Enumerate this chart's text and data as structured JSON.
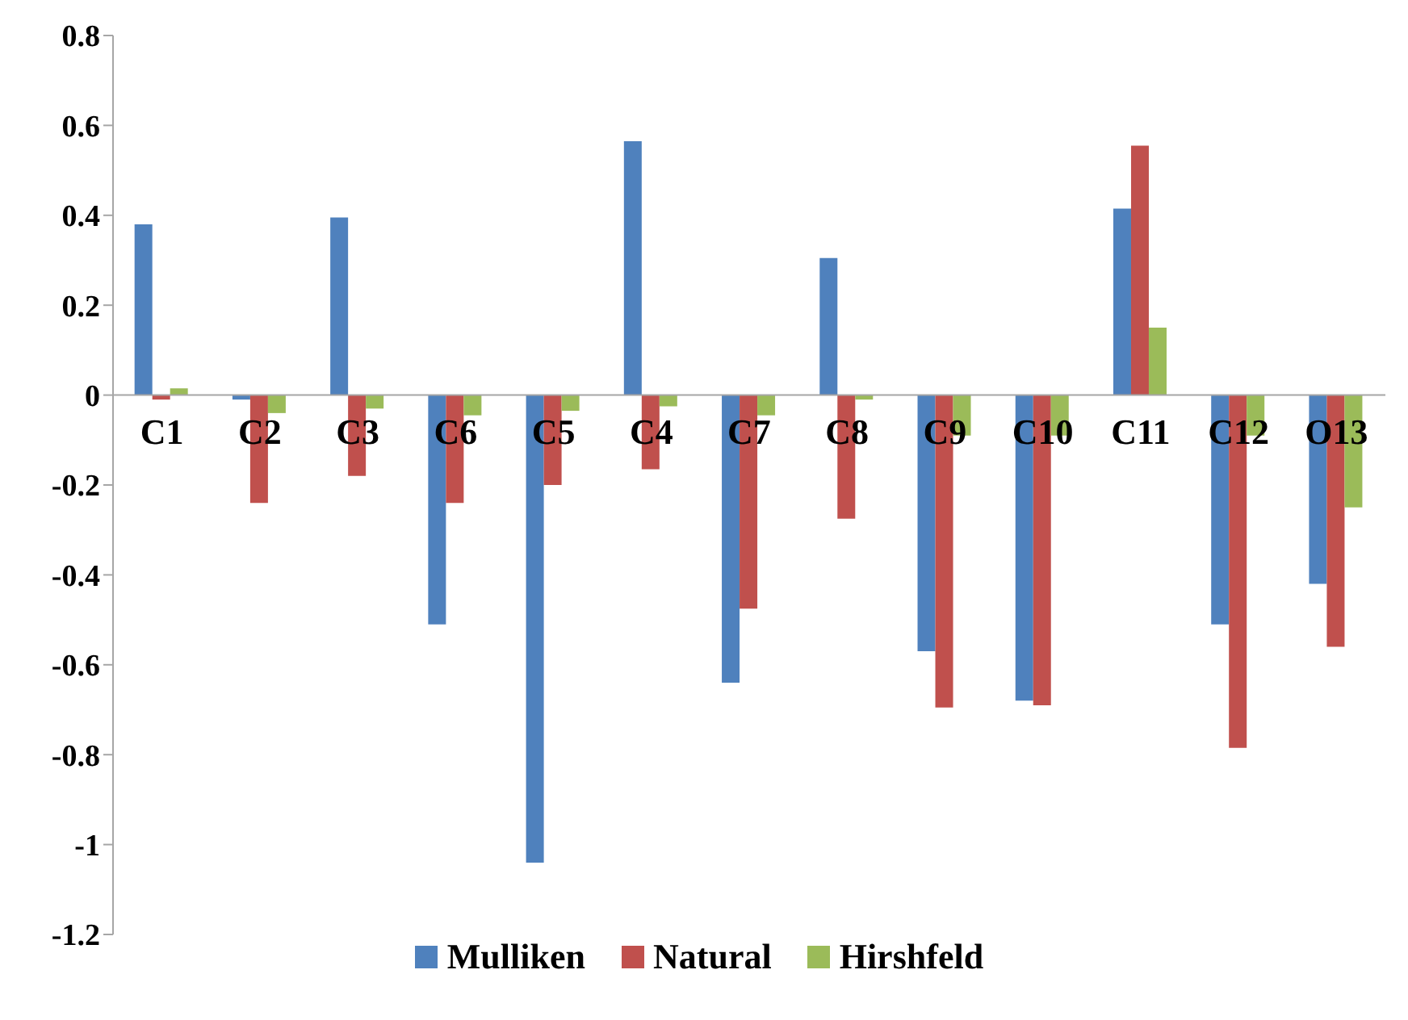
{
  "chart_data": {
    "type": "bar",
    "categories": [
      "C1",
      "C2",
      "C3",
      "C6",
      "C5",
      "C4",
      "C7",
      "C8",
      "C9",
      "C10",
      "C11",
      "C12",
      "O13"
    ],
    "series": [
      {
        "name": "Mulliken",
        "color": "#4f81bd",
        "values": [
          0.38,
          -0.01,
          0.395,
          -0.51,
          -1.04,
          0.565,
          -0.64,
          0.305,
          -0.57,
          -0.68,
          0.415,
          -0.51,
          -0.42
        ]
      },
      {
        "name": "Natural",
        "color": "#c0504d",
        "values": [
          -0.01,
          -0.24,
          -0.18,
          -0.24,
          -0.2,
          -0.165,
          -0.475,
          -0.275,
          -0.695,
          -0.69,
          0.555,
          -0.785,
          -0.56
        ]
      },
      {
        "name": "Hirshfeld",
        "color": "#9bbb59",
        "values": [
          0.015,
          -0.04,
          -0.03,
          -0.045,
          -0.035,
          -0.025,
          -0.045,
          -0.01,
          -0.09,
          -0.09,
          0.15,
          -0.09,
          -0.25
        ]
      }
    ],
    "ylim": [
      -1.2,
      0.8
    ],
    "yticks": [
      -1.2,
      -1,
      -0.8,
      -0.6,
      -0.4,
      -0.2,
      0,
      0.2,
      0.4,
      0.6,
      0.8
    ],
    "grid": false,
    "legend": "bottom"
  }
}
